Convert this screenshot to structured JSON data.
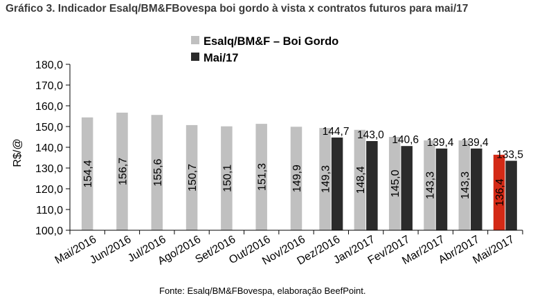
{
  "title": "Gráfico 3. Indicador Esalq/BM&FBovespa boi gordo à vista x contratos futuros para mai/17",
  "source": "Fonte: Esalq/BM&FBovespa, elaboração BeefPoint.",
  "chart_data": {
    "type": "bar",
    "ylabel": "R$/@",
    "ylim": [
      100,
      180
    ],
    "yticks": [
      "100,0",
      "110,0",
      "120,0",
      "130,0",
      "140,0",
      "150,0",
      "160,0",
      "170,0",
      "180,0"
    ],
    "grid": false,
    "legend_position": "top-center",
    "categories": [
      "Mai/2016",
      "Jun/2016",
      "Jul/2016",
      "Ago/2016",
      "Set/2016",
      "Out/2016",
      "Nov/2016",
      "Dez/2016",
      "Jan/2017",
      "Fev/2017",
      "Mar/2017",
      "Abr/2017",
      "Mai/2017"
    ],
    "series": [
      {
        "name": "Esalq/BM&F – Boi Gordo",
        "color": "#c0c0c0",
        "highlight_color": "#d42a16",
        "highlight_index": 12,
        "values": [
          154.4,
          156.7,
          155.6,
          150.7,
          150.1,
          151.3,
          149.9,
          149.3,
          148.4,
          145.0,
          143.3,
          143.3,
          136.4
        ],
        "labels": [
          "154,4",
          "156,7",
          "155,6",
          "150,7",
          "150,1",
          "151,3",
          "149,9",
          "149,3",
          "148,4",
          "145,0",
          "143,3",
          "143,3",
          "136,4"
        ]
      },
      {
        "name": "Mai/17",
        "color": "#2b2b2b",
        "values": [
          null,
          null,
          null,
          null,
          null,
          null,
          null,
          144.7,
          143.0,
          140.6,
          139.4,
          139.4,
          133.5
        ],
        "labels": [
          null,
          null,
          null,
          null,
          null,
          null,
          null,
          "144,7",
          "143,0",
          "140,6",
          "139,4",
          "139,4",
          "133,5"
        ]
      }
    ]
  }
}
